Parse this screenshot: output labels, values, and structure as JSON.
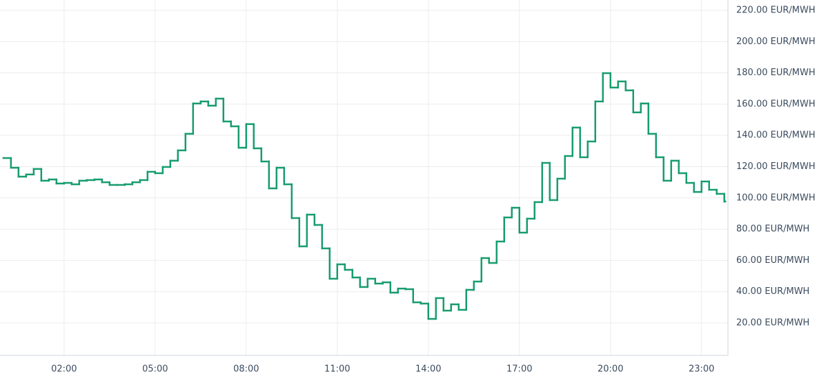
{
  "chart_data": {
    "type": "step-line",
    "x": [
      0,
      0.25,
      0.5,
      0.75,
      1,
      1.25,
      1.5,
      1.75,
      2,
      2.25,
      2.5,
      2.75,
      3,
      3.25,
      3.5,
      3.75,
      4,
      4.25,
      4.5,
      4.75,
      5,
      5.25,
      5.5,
      5.75,
      6,
      6.25,
      6.5,
      6.75,
      7,
      7.25,
      7.5,
      7.75,
      8,
      8.25,
      8.5,
      8.75,
      9,
      9.25,
      9.5,
      9.75,
      10,
      10.25,
      10.5,
      10.75,
      11,
      11.25,
      11.5,
      11.75,
      12,
      12.25,
      12.5,
      12.75,
      13,
      13.25,
      13.5,
      13.75,
      14,
      14.25,
      14.5,
      14.75,
      15,
      15.25,
      15.5,
      15.75,
      16,
      16.25,
      16.5,
      16.75,
      17,
      17.25,
      17.5,
      17.75,
      18,
      18.25,
      18.5,
      18.75,
      19,
      19.25,
      19.5,
      19.75,
      20,
      20.25,
      20.5,
      20.75,
      21,
      21.25,
      21.5,
      21.75,
      22,
      22.25,
      22.5,
      22.75,
      23,
      23.25,
      23.5,
      23.75
    ],
    "series": [
      {
        "color": "#179c6d",
        "values": [
          125.5,
          119.3,
          113.6,
          115,
          118.5,
          111,
          111.8,
          109.2,
          109.6,
          108.7,
          111,
          111.4,
          111.8,
          110,
          108.3,
          108.3,
          108.7,
          110,
          111.4,
          116.7,
          115.8,
          119.8,
          123.8,
          130.4,
          141,
          160.4,
          161.7,
          159,
          163.5,
          148.9,
          145.8,
          132.1,
          147.2,
          131.7,
          123.3,
          106.1,
          119.3,
          108.7,
          87.1,
          69,
          89.3,
          82.7,
          67.7,
          48.3,
          57.5,
          54,
          49.1,
          43,
          48.3,
          45.2,
          46,
          39.4,
          42,
          41.6,
          33.2,
          32.4,
          22.6,
          35.9,
          27.9,
          31.9,
          28.4,
          41.2,
          46.5,
          61.5,
          58.4,
          72.1,
          87.5,
          93.7,
          77.8,
          86.7,
          97.3,
          122.4,
          98.6,
          112.3,
          126.8,
          145,
          126,
          136.1,
          161.7,
          179.8,
          170.6,
          174.5,
          168.8,
          154.7,
          160.4,
          141,
          126,
          111,
          123.8,
          115.8,
          109.6,
          103.8,
          110.5,
          105.2,
          102.6,
          97.7
        ]
      }
    ],
    "xlim": [
      -0.11,
      23.87
    ],
    "xticks": [
      {
        "value": 2,
        "label": "02:00"
      },
      {
        "value": 5,
        "label": "05:00"
      },
      {
        "value": 8,
        "label": "08:00"
      },
      {
        "value": 11,
        "label": "11:00"
      },
      {
        "value": 14,
        "label": "14:00"
      },
      {
        "value": 17,
        "label": "17:00"
      },
      {
        "value": 20,
        "label": "20:00"
      },
      {
        "value": 23,
        "label": "23:00"
      }
    ],
    "ylim": [
      -0.75,
      226.6
    ],
    "yticks": [
      {
        "value": 20,
        "label": "20.00 EUR/MWH"
      },
      {
        "value": 40,
        "label": "40.00 EUR/MWH"
      },
      {
        "value": 60,
        "label": "60.00 EUR/MWH"
      },
      {
        "value": 80,
        "label": "80.00 EUR/MWH"
      },
      {
        "value": 100,
        "label": "100.00 EUR/MWH"
      },
      {
        "value": 120,
        "label": "120.00 EUR/MWH"
      },
      {
        "value": 140,
        "label": "140.00 EUR/MWH"
      },
      {
        "value": 160,
        "label": "160.00 EUR/MWH"
      },
      {
        "value": 180,
        "label": "180.00 EUR/MWH"
      },
      {
        "value": 200,
        "label": "200.00 EUR/MWH"
      },
      {
        "value": 220,
        "label": "220.00 EUR/MWH"
      }
    ],
    "grid": true
  }
}
